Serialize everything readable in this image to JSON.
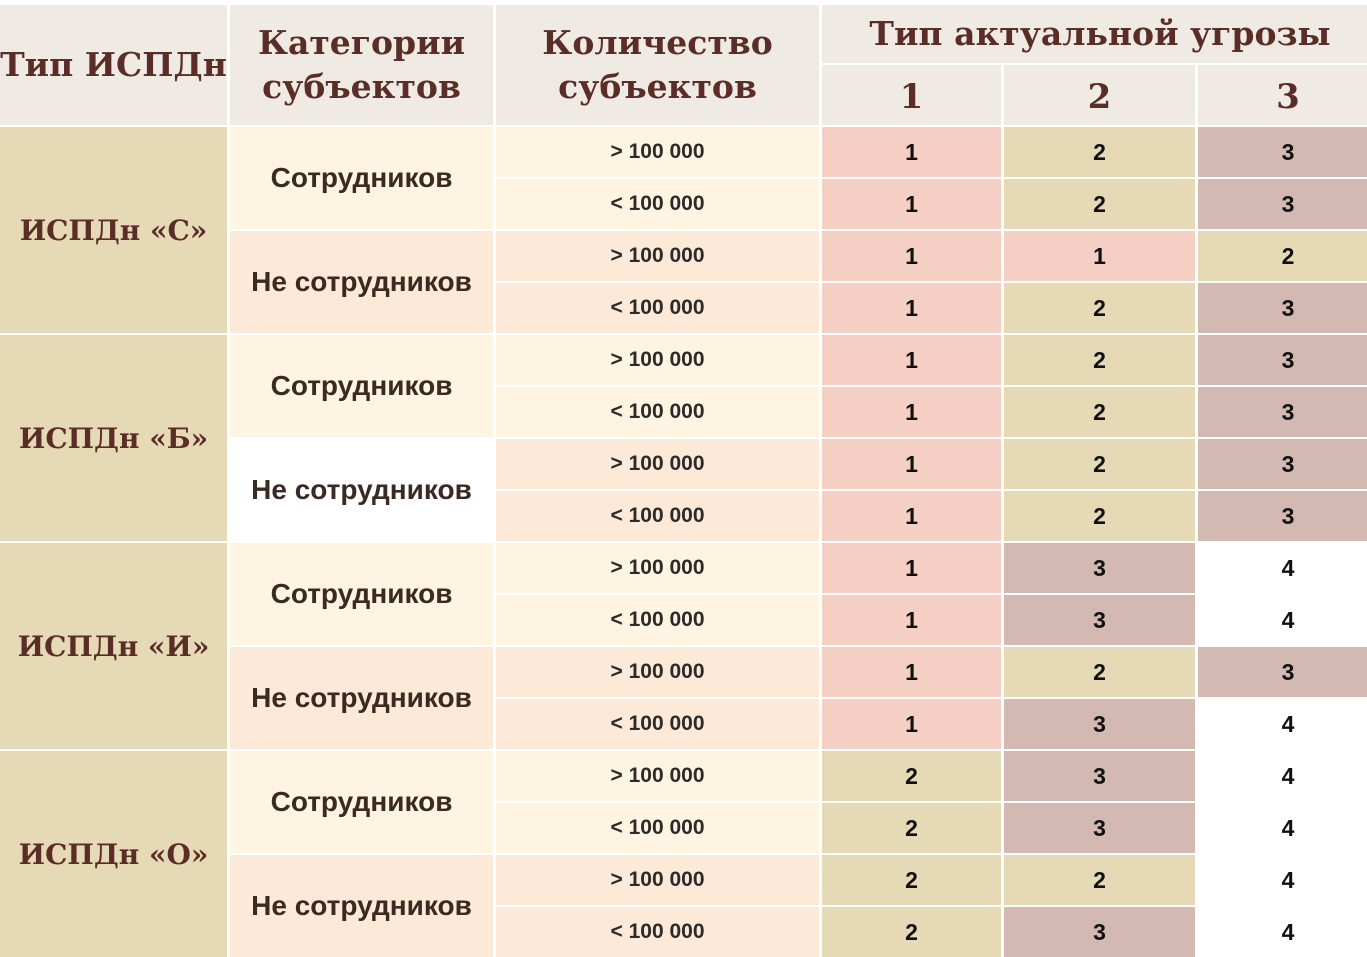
{
  "header": {
    "ispdn_type": "Тип ИСПДн",
    "categories": "Категории субъектов",
    "count": "Количество субъектов",
    "threat_type": "Тип актуальной угрозы",
    "threat_cols": [
      "1",
      "2",
      "3"
    ]
  },
  "colors": {
    "1": "#f5cfc3",
    "2": "#e6d9b6",
    "3": "#d4b8b2",
    "4": "#ffffff"
  },
  "groups": [
    {
      "name": "ИСПДн «С»",
      "categories": [
        {
          "label": "Сотрудников",
          "bg": "a",
          "rows": [
            {
              "count": "> 100 000",
              "values": [
                "1",
                "2",
                "3"
              ]
            },
            {
              "count": "< 100 000",
              "values": [
                "1",
                "2",
                "3"
              ]
            }
          ]
        },
        {
          "label": "Не сотрудников",
          "bg": "b",
          "rows": [
            {
              "count": "> 100 000",
              "values": [
                "1",
                "1",
                "2"
              ]
            },
            {
              "count": "< 100 000",
              "values": [
                "1",
                "2",
                "3"
              ]
            }
          ]
        }
      ]
    },
    {
      "name": "ИСПДн «Б»",
      "categories": [
        {
          "label": "Сотрудников",
          "bg": "a",
          "rows": [
            {
              "count": "> 100 000",
              "values": [
                "1",
                "2",
                "3"
              ]
            },
            {
              "count": "< 100 000",
              "values": [
                "1",
                "2",
                "3"
              ]
            }
          ]
        },
        {
          "label": "Не сотрудников",
          "bg": "w",
          "rows": [
            {
              "count": "> 100 000",
              "values": [
                "1",
                "2",
                "3"
              ]
            },
            {
              "count": "< 100 000",
              "values": [
                "1",
                "2",
                "3"
              ]
            }
          ]
        }
      ]
    },
    {
      "name": "ИСПДн «И»",
      "categories": [
        {
          "label": "Сотрудников",
          "bg": "a",
          "rows": [
            {
              "count": "> 100 000",
              "values": [
                "1",
                "3",
                "4"
              ]
            },
            {
              "count": "< 100 000",
              "values": [
                "1",
                "3",
                "4"
              ]
            }
          ]
        },
        {
          "label": "Не сотрудников",
          "bg": "b",
          "rows": [
            {
              "count": "> 100 000",
              "values": [
                "1",
                "2",
                "3"
              ]
            },
            {
              "count": "< 100 000",
              "values": [
                "1",
                "3",
                "4"
              ]
            }
          ]
        }
      ]
    },
    {
      "name": "ИСПДн «О»",
      "categories": [
        {
          "label": "Сотрудников",
          "bg": "a",
          "rows": [
            {
              "count": "> 100 000",
              "values": [
                "2",
                "3",
                "4"
              ]
            },
            {
              "count": "< 100 000",
              "values": [
                "2",
                "3",
                "4"
              ]
            }
          ]
        },
        {
          "label": "Не сотрудников",
          "bg": "b",
          "rows": [
            {
              "count": "> 100 000",
              "values": [
                "2",
                "2",
                "4"
              ]
            },
            {
              "count": "< 100 000",
              "values": [
                "2",
                "3",
                "4"
              ]
            }
          ]
        }
      ]
    }
  ]
}
